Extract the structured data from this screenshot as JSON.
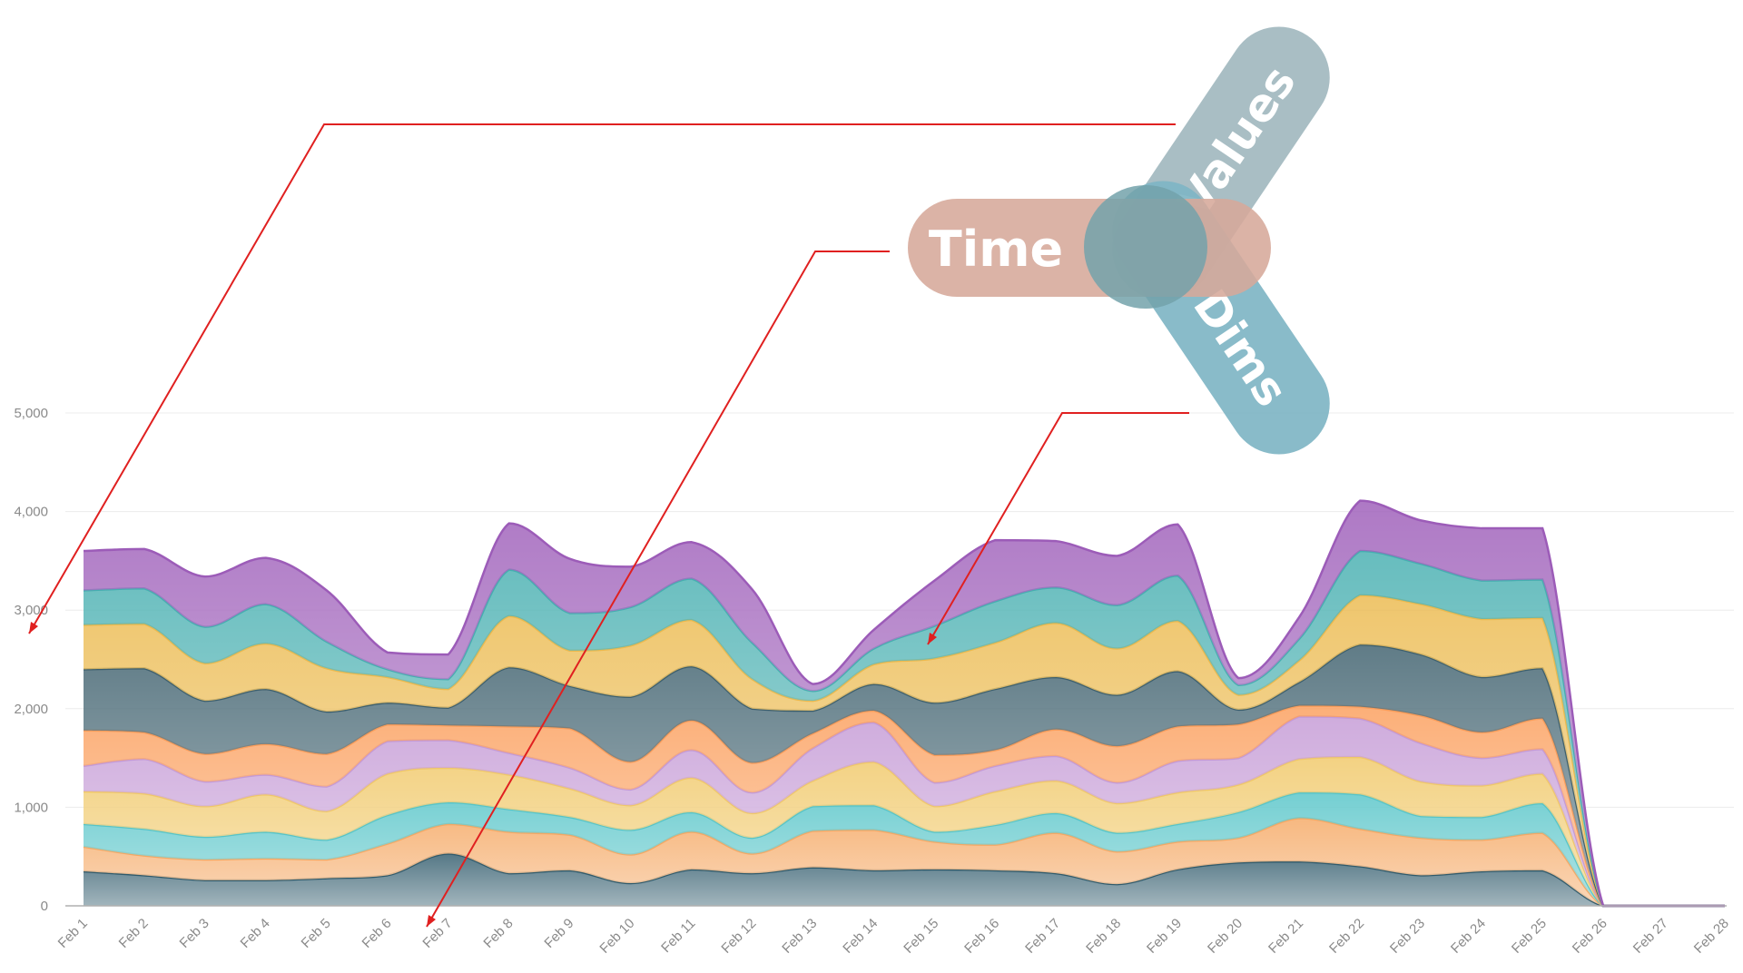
{
  "chart_data": {
    "type": "area",
    "stacked": true,
    "curve": "smooth",
    "title": "",
    "xlabel": "",
    "ylabel": "",
    "ylim": [
      0,
      5000
    ],
    "y_ticks": [
      0,
      1000,
      2000,
      3000,
      4000,
      5000
    ],
    "y_tick_labels": [
      "0",
      "1,000",
      "2,000",
      "3,000",
      "4,000",
      "5,000"
    ],
    "grid": "horizontal",
    "legend": "none",
    "x": [
      "Feb 1",
      "Feb 2",
      "Feb 3",
      "Feb 4",
      "Feb 5",
      "Feb 6",
      "Feb 7",
      "Feb 8",
      "Feb 9",
      "Feb 10",
      "Feb 11",
      "Feb 12",
      "Feb 13",
      "Feb 14",
      "Feb 15",
      "Feb 16",
      "Feb 17",
      "Feb 18",
      "Feb 19",
      "Feb 20",
      "Feb 21",
      "Feb 22",
      "Feb 23",
      "Feb 24",
      "Feb 25",
      "Feb 26",
      "Feb 27",
      "Feb 28"
    ],
    "series": [
      {
        "color": "#2f5a6b",
        "values": [
          350,
          310,
          260,
          260,
          280,
          310,
          530,
          330,
          360,
          230,
          370,
          330,
          390,
          360,
          370,
          360,
          330,
          220,
          370,
          440,
          450,
          400,
          310,
          350,
          360,
          0,
          0,
          0
        ]
      },
      {
        "color": "#f5a864",
        "values": [
          250,
          200,
          210,
          220,
          190,
          320,
          300,
          420,
          360,
          290,
          380,
          200,
          370,
          410,
          280,
          260,
          410,
          330,
          280,
          250,
          440,
          380,
          380,
          320,
          380,
          0,
          0,
          0
        ]
      },
      {
        "color": "#55c4c8",
        "values": [
          230,
          270,
          230,
          270,
          200,
          290,
          220,
          230,
          180,
          250,
          200,
          160,
          250,
          250,
          100,
          200,
          200,
          190,
          180,
          260,
          260,
          350,
          220,
          230,
          300,
          0,
          0,
          0
        ]
      },
      {
        "color": "#f0c868",
        "values": [
          330,
          360,
          310,
          380,
          290,
          420,
          350,
          350,
          290,
          250,
          350,
          250,
          260,
          440,
          260,
          340,
          330,
          300,
          320,
          280,
          340,
          380,
          350,
          320,
          300,
          0,
          0,
          0
        ]
      },
      {
        "color": "#c49ad6",
        "values": [
          260,
          350,
          250,
          200,
          250,
          330,
          280,
          220,
          210,
          160,
          280,
          210,
          330,
          400,
          240,
          260,
          250,
          210,
          320,
          270,
          430,
          390,
          390,
          280,
          250,
          0,
          0,
          0
        ]
      },
      {
        "color": "#fb9d5a",
        "values": [
          360,
          270,
          280,
          310,
          330,
          170,
          150,
          270,
          400,
          280,
          300,
          300,
          150,
          120,
          280,
          160,
          270,
          370,
          350,
          340,
          110,
          120,
          280,
          260,
          310,
          0,
          0,
          0
        ]
      },
      {
        "color": "#3d5f6d",
        "values": [
          620,
          650,
          540,
          560,
          430,
          220,
          180,
          600,
          430,
          660,
          550,
          550,
          230,
          270,
          530,
          620,
          530,
          520,
          560,
          150,
          240,
          630,
          620,
          560,
          510,
          0,
          0,
          0
        ]
      },
      {
        "color": "#ecb94d",
        "values": [
          450,
          450,
          380,
          460,
          440,
          260,
          190,
          520,
          360,
          520,
          470,
          300,
          100,
          200,
          450,
          470,
          550,
          470,
          510,
          150,
          220,
          500,
          510,
          590,
          510,
          0,
          0,
          0
        ]
      },
      {
        "color": "#45aeb0",
        "values": [
          350,
          360,
          370,
          400,
          270,
          80,
          100,
          470,
          380,
          390,
          420,
          370,
          100,
          160,
          330,
          420,
          360,
          440,
          460,
          100,
          220,
          450,
          410,
          390,
          390,
          0,
          0,
          0
        ]
      },
      {
        "color": "#9c5cb8",
        "values": [
          400,
          400,
          510,
          470,
          520,
          170,
          250,
          470,
          550,
          410,
          370,
          540,
          70,
          190,
          460,
          620,
          470,
          500,
          520,
          70,
          220,
          510,
          440,
          530,
          520,
          0,
          0,
          0
        ]
      }
    ]
  },
  "badges": {
    "values_label": "Values",
    "time_label": "Time",
    "dims_label": "Dims"
  },
  "colors": {
    "annotation_line": "#e02020",
    "values_badge": "#a2b8bf",
    "time_badge": "#d6a99a",
    "dims_badge": "#7fb5c4",
    "overlap": "#73a2aa",
    "grid": "#ececec",
    "axis": "#b0b0b0"
  }
}
